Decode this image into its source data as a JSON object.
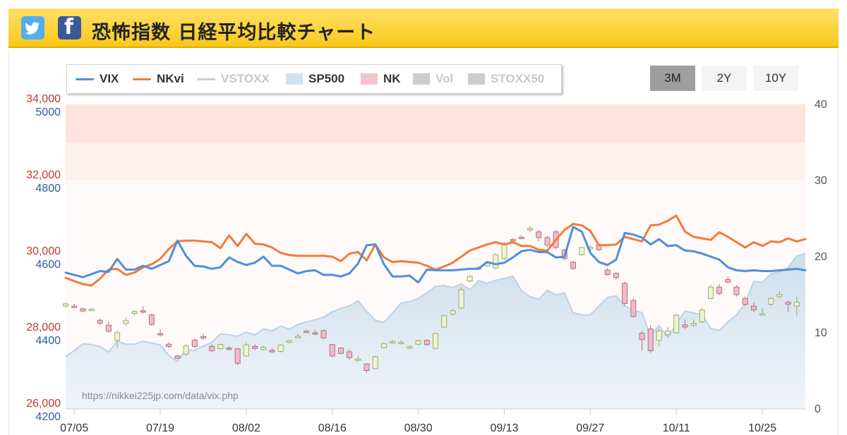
{
  "header": {
    "title": "恐怖指数 日経平均比較チャート",
    "twitter_icon": "twitter-bird-icon",
    "facebook_icon": "facebook-f-icon",
    "colors": {
      "bar": "#f9c81a",
      "twitter": "#55acee",
      "facebook": "#3b5998"
    }
  },
  "range_buttons": [
    {
      "label": "3M",
      "active": true
    },
    {
      "label": "2Y",
      "active": false
    },
    {
      "label": "10Y",
      "active": false
    }
  ],
  "legend": [
    {
      "name": "VIX",
      "kind": "line",
      "color": "#4f8fdb",
      "enabled": true
    },
    {
      "name": "NKvi",
      "kind": "line",
      "color": "#f27b3c",
      "enabled": true
    },
    {
      "name": "VSTOXX",
      "kind": "line",
      "color": "#cccccc",
      "enabled": false
    },
    {
      "name": "SP500",
      "kind": "area",
      "color": "#cfe2f0",
      "enabled": true
    },
    {
      "name": "NK",
      "kind": "area",
      "color": "#f6c3cc",
      "enabled": true
    },
    {
      "name": "Vol",
      "kind": "area",
      "color": "#cccccc",
      "enabled": false
    },
    {
      "name": "STOXX50",
      "kind": "area",
      "color": "#cccccc",
      "enabled": false
    }
  ],
  "watermark": "https://nikkei225jp.com/data/vix.php",
  "chart_data": {
    "type": "line",
    "axes": {
      "nk": {
        "ticks": [
          "26,000",
          "28,000",
          "30,000",
          "32,000",
          "34,000"
        ],
        "min": 26000,
        "max": 34000,
        "color": "#c0392b"
      },
      "sp": {
        "ticks": [
          "4200",
          "4400",
          "4600",
          "4800",
          "5000"
        ],
        "min": 4200,
        "max": 5000,
        "color": "#2c5e9e"
      },
      "vol": {
        "ticks": [
          "0",
          "10",
          "20",
          "30",
          "40"
        ],
        "min": 0,
        "max": 40,
        "color": "#555555"
      },
      "x_ticks": [
        "07/05",
        "07/19",
        "08/02",
        "08/16",
        "08/30",
        "09/13",
        "09/27",
        "10/11",
        "10/25"
      ]
    },
    "bands": [
      {
        "from": 33000,
        "to": 34000,
        "color": "#fde3db"
      },
      {
        "from": 32000,
        "to": 33000,
        "color": "#fef0ec"
      },
      {
        "from": 26000,
        "to": 32000,
        "color": "#fffaf9"
      }
    ],
    "vix": [
      17.9,
      17.6,
      17.3,
      17.7,
      18.1,
      18.0,
      19.7,
      18.3,
      18.3,
      18.8,
      18.4,
      18.9,
      19.4,
      22.1,
      20.1,
      18.8,
      18.7,
      18.4,
      18.6,
      19.9,
      19.3,
      18.9,
      19.2,
      20.0,
      18.8,
      18.8,
      18.3,
      17.8,
      18.1,
      18.2,
      17.6,
      17.6,
      17.4,
      17.8,
      19.1,
      21.5,
      21.6,
      19.0,
      17.4,
      17.4,
      17.5,
      16.6,
      18.3,
      18.2,
      18.2,
      18.2,
      18.3,
      18.4,
      18.4,
      19.3,
      19.0,
      19.2,
      19.9,
      20.7,
      20.9,
      20.6,
      20.6,
      19.9,
      20.0,
      23.9,
      23.3,
      20.5,
      19.3,
      18.9,
      19.6,
      23.1,
      22.9,
      22.5,
      21.6,
      22.3,
      21.4,
      21.5,
      20.8,
      20.7,
      20.4,
      20.0,
      19.6,
      18.6,
      18.2,
      18.1,
      18.2,
      18.1,
      18.1,
      18.2,
      18.3,
      18.4,
      18.2
    ],
    "nkvi": [
      17.2,
      16.8,
      16.4,
      16.2,
      17.1,
      18.3,
      18.4,
      17.6,
      17.9,
      18.6,
      19.0,
      19.7,
      21.0,
      22.0,
      22.1,
      22.1,
      22.0,
      21.9,
      21.1,
      22.8,
      21.4,
      23.0,
      21.7,
      21.6,
      21.2,
      20.5,
      20.2,
      20.1,
      20.1,
      20.1,
      20.1,
      20.0,
      19.4,
      20.4,
      20.6,
      19.5,
      21.6,
      19.9,
      19.3,
      19.4,
      19.3,
      19.2,
      18.8,
      18.3,
      18.7,
      19.2,
      20.0,
      20.8,
      21.2,
      21.6,
      21.9,
      21.6,
      21.9,
      21.4,
      21.4,
      20.9,
      20.8,
      22.2,
      23.5,
      24.3,
      24.1,
      23.4,
      21.5,
      21.5,
      21.6,
      22.6,
      22.3,
      22.0,
      24.1,
      24.2,
      24.7,
      25.4,
      23.3,
      22.6,
      22.4,
      22.2,
      23.2,
      22.6,
      21.9,
      21.2,
      21.9,
      21.4,
      22.0,
      21.9,
      22.4,
      22.0,
      22.3
    ],
    "sp500": [
      4338,
      4353,
      4371,
      4369,
      4364,
      4349,
      4378,
      4370,
      4370,
      4378,
      4373,
      4368,
      4340,
      4325,
      4355,
      4354,
      4365,
      4375,
      4397,
      4395,
      4391,
      4402,
      4394,
      4410,
      4405,
      4418,
      4409,
      4422,
      4428,
      4434,
      4441,
      4455,
      4464,
      4471,
      4484,
      4456,
      4433,
      4427,
      4452,
      4478,
      4482,
      4490,
      4505,
      4522,
      4524,
      4519,
      4528,
      4513,
      4537,
      4530,
      4538,
      4543,
      4549,
      4510,
      4495,
      4488,
      4512,
      4499,
      4505,
      4452,
      4447,
      4447,
      4470,
      4493,
      4497,
      4471,
      4459,
      4453,
      4391,
      4419,
      4387,
      4422,
      4457,
      4452,
      4448,
      4411,
      4406,
      4429,
      4447,
      4477,
      4535,
      4533,
      4555,
      4560,
      4571,
      4602,
      4608
    ],
    "nk_candles": [
      {
        "o": 28700,
        "c": 28760,
        "h": 28800,
        "l": 28650
      },
      {
        "o": 28700,
        "c": 28680,
        "h": 28760,
        "l": 28640
      },
      {
        "o": 28630,
        "c": 28570,
        "h": 28660,
        "l": 28550
      },
      {
        "o": 28590,
        "c": 28620,
        "h": 28650,
        "l": 28560
      },
      {
        "o": 28330,
        "c": 28250,
        "h": 28380,
        "l": 28200
      },
      {
        "o": 28200,
        "c": 28040,
        "h": 28300,
        "l": 28000
      },
      {
        "o": 27800,
        "c": 28000,
        "h": 28050,
        "l": 27600
      },
      {
        "o": 28240,
        "c": 28320,
        "h": 28400,
        "l": 28180
      },
      {
        "o": 28510,
        "c": 28560,
        "h": 28600,
        "l": 28450
      },
      {
        "o": 28580,
        "c": 28550,
        "h": 28700,
        "l": 28500
      },
      {
        "o": 28470,
        "c": 28220,
        "h": 28500,
        "l": 28180
      },
      {
        "o": 27980,
        "c": 27950,
        "h": 28100,
        "l": 27900
      },
      {
        "o": 27700,
        "c": 27640,
        "h": 27750,
        "l": 27600
      },
      {
        "o": 27390,
        "c": 27330,
        "h": 27420,
        "l": 27300
      },
      {
        "o": 27440,
        "c": 27660,
        "h": 27700,
        "l": 27400
      },
      {
        "o": 27810,
        "c": 27640,
        "h": 27850,
        "l": 27600
      },
      {
        "o": 27900,
        "c": 27860,
        "h": 27980,
        "l": 27820
      },
      {
        "o": 27640,
        "c": 27530,
        "h": 27700,
        "l": 27500
      },
      {
        "o": 27580,
        "c": 27690,
        "h": 27720,
        "l": 27550
      },
      {
        "o": 27600,
        "c": 27570,
        "h": 27650,
        "l": 27540
      },
      {
        "o": 27580,
        "c": 27200,
        "h": 27600,
        "l": 27150
      },
      {
        "o": 27390,
        "c": 27680,
        "h": 27750,
        "l": 27370
      },
      {
        "o": 27640,
        "c": 27590,
        "h": 27700,
        "l": 27550
      },
      {
        "o": 27560,
        "c": 27620,
        "h": 27660,
        "l": 27530
      },
      {
        "o": 27540,
        "c": 27500,
        "h": 27600,
        "l": 27470
      },
      {
        "o": 27510,
        "c": 27680,
        "h": 27700,
        "l": 27480
      },
      {
        "o": 27750,
        "c": 27790,
        "h": 27820,
        "l": 27720
      },
      {
        "o": 27890,
        "c": 27910,
        "h": 27980,
        "l": 27860
      },
      {
        "o": 28040,
        "c": 28030,
        "h": 28080,
        "l": 28000
      },
      {
        "o": 28000,
        "c": 27970,
        "h": 28080,
        "l": 27940
      },
      {
        "o": 28060,
        "c": 27870,
        "h": 28080,
        "l": 27830
      },
      {
        "o": 27690,
        "c": 27390,
        "h": 27700,
        "l": 27350
      },
      {
        "o": 27600,
        "c": 27460,
        "h": 27620,
        "l": 27430
      },
      {
        "o": 27500,
        "c": 27350,
        "h": 27560,
        "l": 27300
      },
      {
        "o": 27310,
        "c": 27310,
        "h": 27400,
        "l": 27230
      },
      {
        "o": 27180,
        "c": 27010,
        "h": 27200,
        "l": 26950
      },
      {
        "o": 27060,
        "c": 27370,
        "h": 27400,
        "l": 27030
      },
      {
        "o": 27610,
        "c": 27710,
        "h": 27760,
        "l": 27580
      },
      {
        "o": 27740,
        "c": 27770,
        "h": 27820,
        "l": 27700
      },
      {
        "o": 27720,
        "c": 27750,
        "h": 27810,
        "l": 27690
      },
      {
        "o": 27600,
        "c": 27630,
        "h": 27680,
        "l": 27570
      },
      {
        "o": 27700,
        "c": 27790,
        "h": 27820,
        "l": 27670
      },
      {
        "o": 27800,
        "c": 27690,
        "h": 27830,
        "l": 27650
      },
      {
        "o": 27590,
        "c": 27980,
        "h": 28000,
        "l": 27570
      },
      {
        "o": 28150,
        "c": 28450,
        "h": 28480,
        "l": 28120
      },
      {
        "o": 28490,
        "c": 28580,
        "h": 28620,
        "l": 28450
      },
      {
        "o": 28650,
        "c": 29130,
        "h": 29200,
        "l": 28620
      },
      {
        "o": 29360,
        "c": 29480,
        "h": 29520,
        "l": 29320
      },
      {
        "o": 29680,
        "c": 29710,
        "h": 29770,
        "l": 29650
      },
      {
        "o": 29760,
        "c": 29830,
        "h": 29880,
        "l": 29730
      },
      {
        "o": 29700,
        "c": 30050,
        "h": 30100,
        "l": 29670
      },
      {
        "o": 29950,
        "c": 30330,
        "h": 30380,
        "l": 29900
      },
      {
        "o": 30450,
        "c": 30440,
        "h": 30480,
        "l": 30400
      },
      {
        "o": 30510,
        "c": 30500,
        "h": 30560,
        "l": 30460
      },
      {
        "o": 30700,
        "c": 30740,
        "h": 30800,
        "l": 30650
      },
      {
        "o": 30650,
        "c": 30500,
        "h": 30700,
        "l": 30400
      },
      {
        "o": 30500,
        "c": 30300,
        "h": 30550,
        "l": 30250
      },
      {
        "o": 30650,
        "c": 30240,
        "h": 30700,
        "l": 30200
      },
      {
        "o": 30170,
        "c": 29950,
        "h": 30200,
        "l": 29900
      },
      {
        "o": 29850,
        "c": 29690,
        "h": 29900,
        "l": 29650
      },
      {
        "o": 30050,
        "c": 30240,
        "h": 30260,
        "l": 30020
      },
      {
        "o": 30200,
        "c": 30250,
        "h": 30310,
        "l": 30150
      },
      {
        "o": 30300,
        "c": 30180,
        "h": 30350,
        "l": 30150
      },
      {
        "o": 29650,
        "c": 29530,
        "h": 29700,
        "l": 29500
      },
      {
        "o": 29560,
        "c": 29450,
        "h": 29600,
        "l": 29400
      },
      {
        "o": 29300,
        "c": 28770,
        "h": 29350,
        "l": 28700
      },
      {
        "o": 28850,
        "c": 28430,
        "h": 28900,
        "l": 28400
      },
      {
        "o": 27990,
        "c": 27820,
        "h": 28050,
        "l": 27530
      },
      {
        "o": 28100,
        "c": 27530,
        "h": 28200,
        "l": 27470
      },
      {
        "o": 27800,
        "c": 28050,
        "h": 28100,
        "l": 27650
      },
      {
        "o": 27950,
        "c": 28050,
        "h": 28150,
        "l": 27900
      },
      {
        "o": 28000,
        "c": 28460,
        "h": 28500,
        "l": 27980
      },
      {
        "o": 28210,
        "c": 28150,
        "h": 28350,
        "l": 28100
      },
      {
        "o": 28200,
        "c": 28250,
        "h": 28350,
        "l": 28150
      },
      {
        "o": 28290,
        "c": 28600,
        "h": 28650,
        "l": 28250
      },
      {
        "o": 28900,
        "c": 29200,
        "h": 29260,
        "l": 28880
      },
      {
        "o": 29200,
        "c": 29030,
        "h": 29280,
        "l": 28990
      },
      {
        "o": 29400,
        "c": 29330,
        "h": 29480,
        "l": 29290
      },
      {
        "o": 29200,
        "c": 29000,
        "h": 29250,
        "l": 28950
      },
      {
        "o": 28900,
        "c": 28750,
        "h": 28950,
        "l": 28700
      },
      {
        "o": 28700,
        "c": 28600,
        "h": 28800,
        "l": 28550
      },
      {
        "o": 28500,
        "c": 28500,
        "h": 28650,
        "l": 28450
      },
      {
        "o": 28750,
        "c": 28900,
        "h": 28950,
        "l": 28700
      },
      {
        "o": 28950,
        "c": 29000,
        "h": 29100,
        "l": 28900
      },
      {
        "o": 28800,
        "c": 28750,
        "h": 28850,
        "l": 28550
      },
      {
        "o": 28700,
        "c": 28800,
        "h": 28950,
        "l": 28450
      }
    ]
  }
}
